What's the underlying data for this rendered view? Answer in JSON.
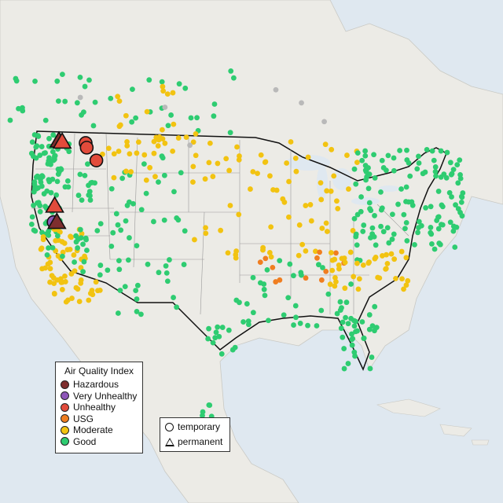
{
  "colors": {
    "Hazardous": "#7e2e2e",
    "Very Unhealthy": "#8e56b8",
    "Unhealthy": "#e24b3b",
    "USG": "#f07e20",
    "Moderate": "#f2c311",
    "Good": "#2ecc71",
    "missing": "#b9b9b9"
  },
  "legend": {
    "title": "Air Quality Index",
    "categories": [
      "Hazardous",
      "Very Unhealthy",
      "Unhealthy",
      "USG",
      "Moderate",
      "Good"
    ],
    "shapes": [
      "temporary",
      "permanent"
    ]
  },
  "large_markers": [
    {
      "lon": -122.8,
      "lat": 48.6,
      "shape": "triangle",
      "cat": "Hazardous"
    },
    {
      "lon": -122.5,
      "lat": 48.5,
      "shape": "triangle",
      "cat": "Unhealthy"
    },
    {
      "lon": -120.3,
      "lat": 48.4,
      "shape": "circle",
      "cat": "Unhealthy"
    },
    {
      "lon": -120.2,
      "lat": 48.0,
      "shape": "circle",
      "cat": "Unhealthy"
    },
    {
      "lon": -119.3,
      "lat": 46.9,
      "shape": "circle",
      "cat": "Unhealthy"
    },
    {
      "lon": -123.2,
      "lat": 43.0,
      "shape": "triangle",
      "cat": "Unhealthy"
    },
    {
      "lon": -123.3,
      "lat": 41.6,
      "shape": "circle",
      "cat": "Very Unhealthy"
    },
    {
      "lon": -123.0,
      "lat": 41.6,
      "shape": "triangle",
      "cat": "Hazardous"
    }
  ]
}
